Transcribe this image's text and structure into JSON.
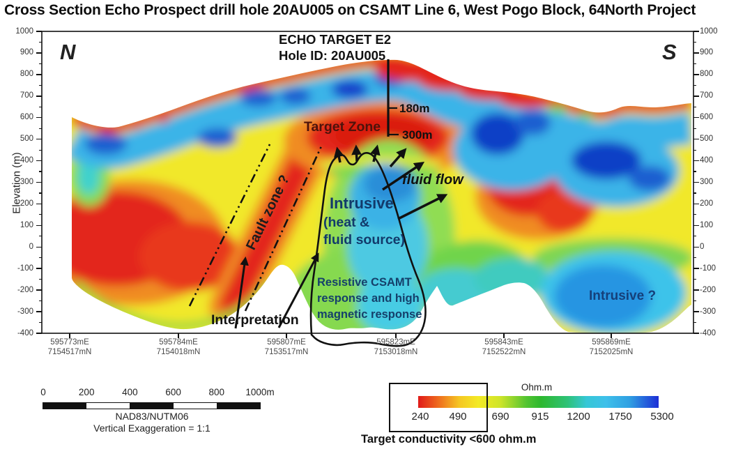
{
  "title": "Cross Section Echo Prospect drill hole 20AU005 on CSAMT Line 6, West Pogo Block, 64North Project",
  "compass": {
    "north": "N",
    "south": "S"
  },
  "drill_annotation": {
    "target": "ECHO TARGET  E2",
    "hole_id": "Hole ID: 20AU005",
    "depth_marks": [
      "180m",
      "300m"
    ]
  },
  "labels": {
    "target_zone": "Target Zone",
    "fault_zone": "Fault zone ?",
    "intrusive_title": "Intrusive",
    "intrusive_sub1": "(heat &",
    "intrusive_sub2": "fluid source)",
    "fluid_flow": "fluid flow",
    "resistive_note_1": "Resistive CSAMT",
    "resistive_note_2": "response and high",
    "resistive_note_3": "magnetic response",
    "interpretation": "Interpretation",
    "intrusive_question": "Intrusive ?"
  },
  "y_axis": {
    "label": "Elevation (m)",
    "ticks": [
      "1000",
      "900",
      "800",
      "700",
      "600",
      "500",
      "400",
      "300",
      "200",
      "100",
      "0",
      "-100",
      "-200",
      "-300",
      "-400"
    ]
  },
  "x_axis": {
    "stations": [
      {
        "easting": "595773mE",
        "northing": "7154517mN"
      },
      {
        "easting": "595784mE",
        "northing": "7154018mN"
      },
      {
        "easting": "595807mE",
        "northing": "7153517mN"
      },
      {
        "easting": "595823mE",
        "northing": "7153018mN"
      },
      {
        "easting": "595843mE",
        "northing": "7152522mN"
      },
      {
        "easting": "595869mE",
        "northing": "7152025mN"
      }
    ]
  },
  "scale_bar": {
    "tick_labels": [
      "0",
      "200",
      "400",
      "600",
      "800",
      "1000m"
    ],
    "datum": "NAD83/NUTM06",
    "vertical_exaggeration": "Vertical Exaggeration = 1:1"
  },
  "colorbar": {
    "title": "Ohm.m",
    "tick_labels": [
      "240",
      "490",
      "690",
      "915",
      "1200",
      "1750",
      "5300"
    ],
    "note": "Target conductivity <600 ohm.m",
    "colors": {
      "conductive_red": "#e01a18",
      "orange": "#ee671d",
      "yellow": "#f3ea25",
      "green": "#2db82e",
      "cyan": "#3cc8ec",
      "resistive_blue": "#1c2ed6"
    }
  },
  "chart_data": {
    "type": "heatmap",
    "title": "Cross Section Echo Prospect drill hole 20AU005 on CSAMT Line 6, West Pogo Block, 64North Project",
    "orientation": {
      "left": "N",
      "right": "S"
    },
    "y_axis": {
      "label": "Elevation (m)",
      "range": [
        -400,
        1000
      ],
      "tick_interval": 100,
      "units": "m"
    },
    "x_axis_stations": [
      {
        "easting_m": 595773,
        "northing_m": 7154517
      },
      {
        "easting_m": 595784,
        "northing_m": 7154018
      },
      {
        "easting_m": 595807,
        "northing_m": 7153517
      },
      {
        "easting_m": 595823,
        "northing_m": 7153018
      },
      {
        "easting_m": 595843,
        "northing_m": 7152522
      },
      {
        "easting_m": 595869,
        "northing_m": 7152025
      }
    ],
    "colorbar": {
      "units": "Ohm.m",
      "scale_values": [
        240,
        490,
        690,
        915,
        1200,
        1750,
        5300
      ],
      "orientation": "horizontal",
      "low_end": "red (conductive)",
      "high_end": "blue (resistive)",
      "highlight": "black box around 240-600 ohm.m = target conductivity"
    },
    "scale_bar_m": [
      0,
      200,
      400,
      600,
      800,
      1000
    ],
    "datum": "NAD83/NUTM06",
    "vertical_exaggeration": "1:1",
    "drill_hole": {
      "id": "20AU005",
      "target": "ECHO TARGET E2",
      "depth_marks_m": [
        180,
        300
      ]
    },
    "annotations": [
      {
        "text": "Target Zone",
        "type": "zone-label",
        "location": "conductive red band ~elev 450-650 m at section center"
      },
      {
        "text": "Fault zone ?",
        "type": "interpreted-fault",
        "location": "north-dipping red conductive band, shown by two dash-dot lines"
      },
      {
        "text": "Intrusive (heat & fluid source)",
        "type": "interpreted-intrusive",
        "location": "outlined resistive cyan-blue plume beneath target zone"
      },
      {
        "text": "fluid flow",
        "type": "process-arrows",
        "location": "arrows radiating up/right from intrusive top"
      },
      {
        "text": "Resistive CSAMT response and high magnetic response",
        "type": "note",
        "location": "inside intrusive outline"
      },
      {
        "text": "Interpretation",
        "type": "note",
        "location": "below section, arrows to fault zone and intrusive"
      },
      {
        "text": "Intrusive ?",
        "type": "interpreted-intrusive",
        "location": "blue resistive body lower-right, elev ~ -100 to -400 m"
      }
    ]
  }
}
